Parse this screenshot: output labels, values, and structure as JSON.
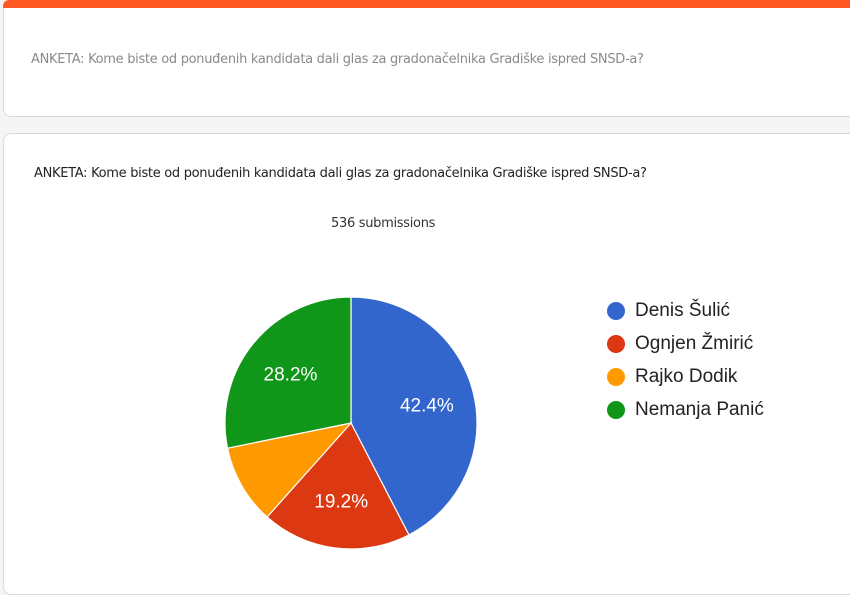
{
  "header_card": {
    "question": "ANKETA: Kome biste od ponuđenih kandidata dali glas za gradonačelnika Gradiške ispred SNSD-a?"
  },
  "results_card": {
    "question": "ANKETA: Kome biste od ponuđenih kandidata dali glas za gradonačelnika Gradiške ispred SNSD-a?",
    "submissions": "536 submissions"
  },
  "colors": {
    "accent_bar": "#ff5722"
  },
  "chart_data": {
    "type": "pie",
    "title": "ANKETA: Kome biste od ponuđenih kandidata dali glas za gradonačelnika Gradiške ispred SNSD-a?",
    "subtitle": "536 submissions",
    "categories": [
      "Denis Šulić",
      "Ognjen Žmirić",
      "Rajko Dodik",
      "Nemanja Panić"
    ],
    "values": [
      42.4,
      19.2,
      10.2,
      28.2
    ],
    "labels": [
      "42.4%",
      "19.2%",
      "",
      "28.2%"
    ],
    "colors": [
      "#3366cc",
      "#dc3912",
      "#ff9900",
      "#109618"
    ],
    "legend_position": "right"
  },
  "legend": [
    {
      "label": "Denis Šulić",
      "color": "#3366cc"
    },
    {
      "label": "Ognjen Žmirić",
      "color": "#dc3912"
    },
    {
      "label": "Rajko Dodik",
      "color": "#ff9900"
    },
    {
      "label": "Nemanja Panić",
      "color": "#109618"
    }
  ]
}
